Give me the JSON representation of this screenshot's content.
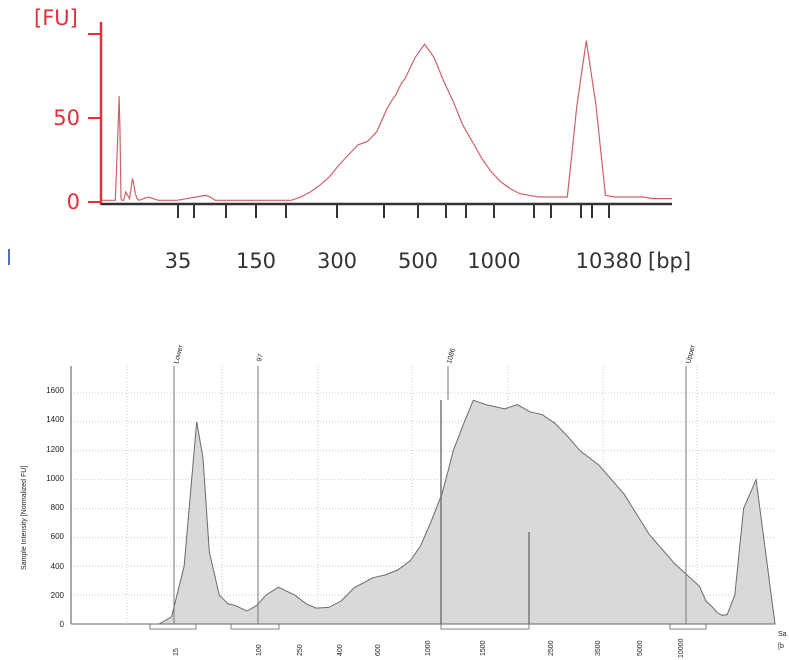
{
  "chart_data": [
    {
      "type": "line",
      "ylabel": "[FU]",
      "xunit": "[bp]",
      "ytick_labels": [
        "0",
        "50"
      ],
      "xtick_labels": [
        "35",
        "150",
        "300",
        "500",
        "1000",
        "10380"
      ],
      "colors": {
        "trace": "#d06068",
        "yaxis": "#e0303a",
        "xaxis": "#333333"
      },
      "series": [
        {
          "x": [
            0,
            12,
            15,
            18,
            19,
            20,
            21,
            22,
            24,
            26,
            28,
            30,
            32,
            33,
            34,
            36,
            38,
            40,
            45,
            50,
            60,
            70,
            80,
            100,
            110,
            115,
            120,
            130,
            140,
            150,
            160,
            170,
            180,
            190,
            200,
            210,
            220,
            230,
            240,
            250,
            260,
            270,
            280,
            290,
            300,
            305,
            310,
            315,
            320,
            325,
            330,
            335,
            340,
            350,
            360,
            370,
            380,
            390,
            400,
            410,
            420,
            430,
            440,
            450,
            460,
            470,
            480,
            490,
            495,
            500,
            510,
            520,
            530,
            540,
            550,
            560,
            570,
            580,
            590,
            600
          ],
          "y": [
            1,
            1,
            1,
            44,
            63,
            42,
            2,
            1,
            1,
            6,
            4,
            2,
            10,
            14,
            12,
            5,
            2,
            1,
            2,
            3,
            1,
            1,
            1,
            3,
            4,
            3,
            1,
            1,
            1,
            1,
            1,
            1,
            1,
            1,
            1,
            3,
            6,
            10,
            15,
            22,
            28,
            34,
            36,
            42,
            55,
            60,
            64,
            70,
            74,
            80,
            86,
            90,
            94,
            86,
            72,
            60,
            46,
            36,
            26,
            18,
            12,
            8,
            5,
            4,
            3,
            3,
            3,
            3,
            30,
            57,
            96,
            58,
            4,
            3,
            3,
            3,
            3,
            2,
            2,
            2
          ]
        }
      ],
      "ylim": [
        0,
        100
      ]
    },
    {
      "type": "area",
      "ylabel": "Sample Intensity [Normalized FU]",
      "peak_labels": [
        "Lower",
        "97",
        "1086",
        "Upper"
      ],
      "ytick_labels": [
        "0",
        "200",
        "400",
        "600",
        "800",
        "1000",
        "1200",
        "1400",
        "1600"
      ],
      "xtick_labels": [
        "15",
        "100",
        "250",
        "400",
        "600",
        "1000",
        "1500",
        "2500",
        "3500",
        "5000",
        "10000"
      ],
      "corner_labels": [
        "Sa",
        "[b"
      ],
      "series": [
        {
          "x": [
            0,
            40,
            70,
            80,
            90,
            97,
            100,
            105,
            110,
            118,
            125,
            130,
            135,
            140,
            148,
            155,
            165,
            178,
            187,
            195,
            205,
            215,
            225,
            240,
            250,
            260,
            270,
            278,
            286,
            295,
            300,
            304,
            312,
            320,
            330,
            345,
            355,
            365,
            375,
            385,
            395,
            405,
            420,
            440,
            460,
            480,
            500,
            505,
            510,
            514,
            518,
            522,
            528,
            535,
            545,
            560
          ],
          "y": [
            0,
            0,
            0,
            50,
            400,
            1100,
            1400,
            1150,
            500,
            200,
            140,
            130,
            110,
            90,
            130,
            200,
            255,
            200,
            140,
            110,
            115,
            160,
            250,
            320,
            340,
            375,
            440,
            540,
            700,
            900,
            1060,
            1200,
            1380,
            1550,
            1520,
            1490,
            1520,
            1470,
            1450,
            1390,
            1300,
            1200,
            1100,
            900,
            620,
            420,
            260,
            160,
            120,
            80,
            60,
            65,
            200,
            800,
            1000,
            0
          ]
        }
      ],
      "ylim": [
        0,
        1750
      ],
      "grid": true
    }
  ]
}
